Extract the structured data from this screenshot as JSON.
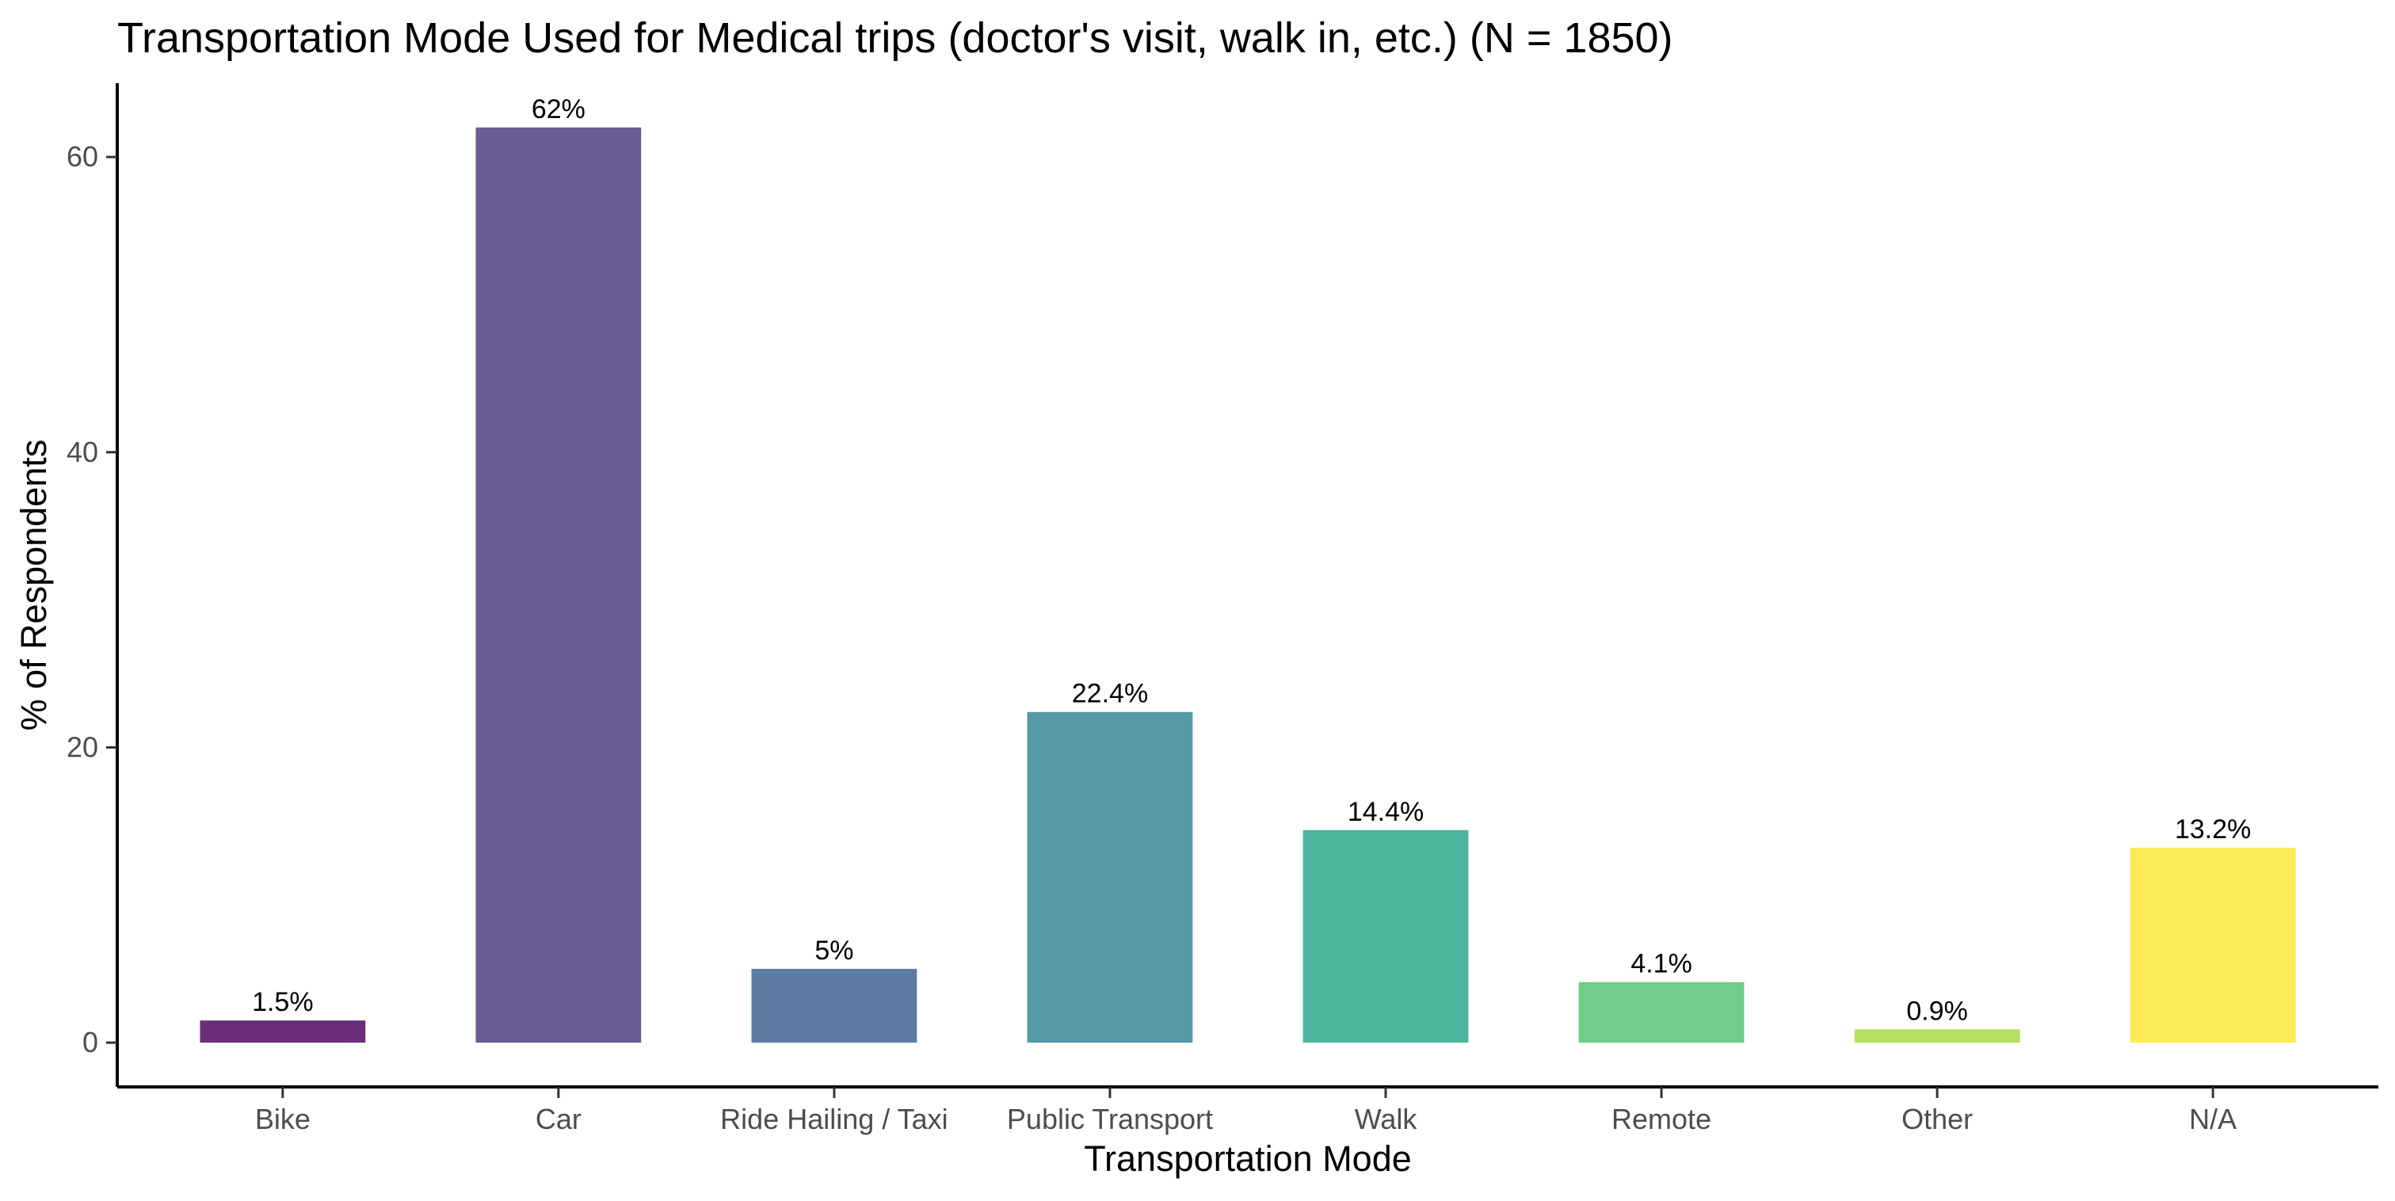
{
  "chart_data": {
    "type": "bar",
    "title": "Transportation Mode Used for Medical trips (doctor's visit, walk in, etc.) (N = 1850)",
    "xlabel": "Transportation Mode",
    "ylabel": "% of Respondents",
    "categories": [
      "Bike",
      "Car",
      "Ride Hailing / Taxi",
      "Public Transport",
      "Walk",
      "Remote",
      "Other",
      "N/A"
    ],
    "values": [
      1.5,
      62,
      5,
      22.4,
      14.4,
      4.1,
      0.9,
      13.2
    ],
    "value_labels": [
      "1.5%",
      "62%",
      "5%",
      "22.4%",
      "14.4%",
      "4.1%",
      "0.9%",
      "13.2%"
    ],
    "colors": [
      "#6b2f7a",
      "#6b5c95",
      "#5e7ca2",
      "#539aa5",
      "#4fb49e",
      "#70cd8a",
      "#b6e05f",
      "#fbea54"
    ],
    "ylim": [
      -3,
      65
    ],
    "yticks": [
      0,
      20,
      40,
      60
    ],
    "grid": false,
    "legend": "none"
  }
}
